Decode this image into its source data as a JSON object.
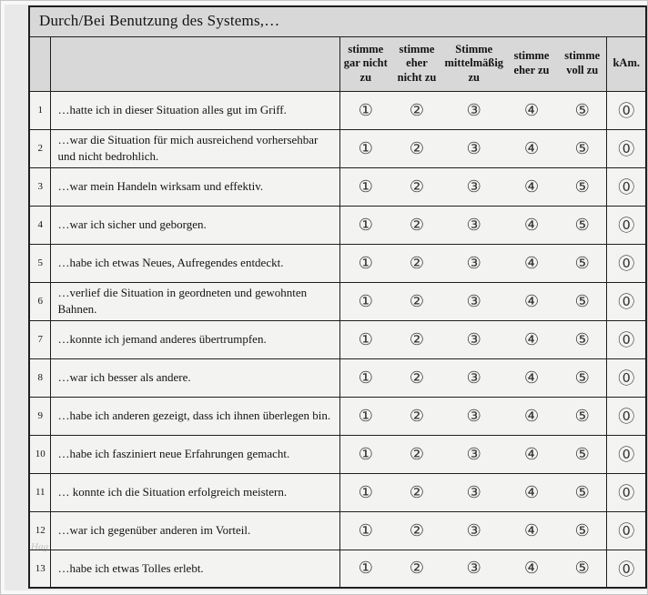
{
  "title": "Durch/Bei Benutzung des Systems,…",
  "colors": {
    "page_background": "#e9e9e9",
    "header_background": "#d8d8d8",
    "cell_background": "#f3f3f2",
    "border": "#1f1f1f"
  },
  "table": {
    "rating_headers": [
      "stimme gar nicht zu",
      "stimme eher nicht zu",
      "Stimme mittelmäßig zu",
      "stimme eher zu",
      "stimme voll zu",
      "kAm."
    ],
    "option_symbols": [
      "①",
      "②",
      "③",
      "④",
      "⑤"
    ],
    "kam_symbol": "⓪",
    "rows": [
      {
        "num": "1",
        "text": "…hatte ich in dieser Situation alles gut im Griff."
      },
      {
        "num": "2",
        "text": "…war die Situation für mich ausreichend vorhersehbar und nicht bedrohlich."
      },
      {
        "num": "3",
        "text": "…war mein Handeln wirksam und effektiv."
      },
      {
        "num": "4",
        "text": "…war ich sicher und geborgen."
      },
      {
        "num": "5",
        "text": "…habe ich etwas Neues, Aufregendes entdeckt."
      },
      {
        "num": "6",
        "text": "…verlief die Situation in geordneten und gewohnten Bahnen."
      },
      {
        "num": "7",
        "text": "…konnte ich jemand anderes übertrumpfen."
      },
      {
        "num": "8",
        "text": "…war ich besser als andere."
      },
      {
        "num": "9",
        "text": "…habe ich anderen gezeigt, dass ich ihnen überlegen bin."
      },
      {
        "num": "10",
        "text": "…habe ich fasziniert neue Erfahrungen gemacht."
      },
      {
        "num": "11",
        "text": "… konnte ich die Situation erfolgreich meistern."
      },
      {
        "num": "12",
        "text": "…war ich gegenüber anderen im Vorteil."
      },
      {
        "num": "13",
        "text": "…habe ich etwas Tolles erlebt."
      }
    ]
  },
  "watermark": "Hag"
}
